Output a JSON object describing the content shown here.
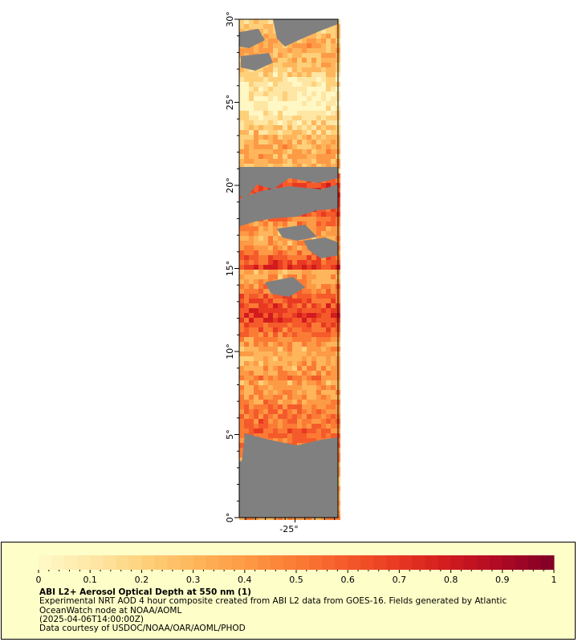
{
  "map": {
    "lat_labels": [
      "0°",
      "5°",
      "10°",
      "15°",
      "20°",
      "25°",
      "30°"
    ],
    "lon_labels": [
      "-25°"
    ],
    "land_color": "#808080",
    "palette": [
      "#fff7c4",
      "#fee6a4",
      "#fed07a",
      "#feb55b",
      "#fd9a45",
      "#fb7b35",
      "#f55a2b",
      "#e83a22",
      "#d21b1f",
      "#b10a24",
      "#850026"
    ]
  },
  "legend": {
    "ticks": [
      "0",
      "0.1",
      "0.2",
      "0.3",
      "0.4",
      "0.5",
      "0.6",
      "0.7",
      "0.8",
      "0.9",
      "1"
    ],
    "title": "ABI L2+ Aerosol Optical Depth at 550 nm (1)",
    "line1": "Experimental NRT AOD 4 hour composite created from ABI L2 data from GOES-16. Fields generated by Atlantic",
    "line2": "OceanWatch node at NOAA/AOML",
    "line3": "(2025-04-06T14:00:00Z)",
    "line4": "Data courtesy of USDOC/NOAA/OAR/AOML/PHOD"
  }
}
